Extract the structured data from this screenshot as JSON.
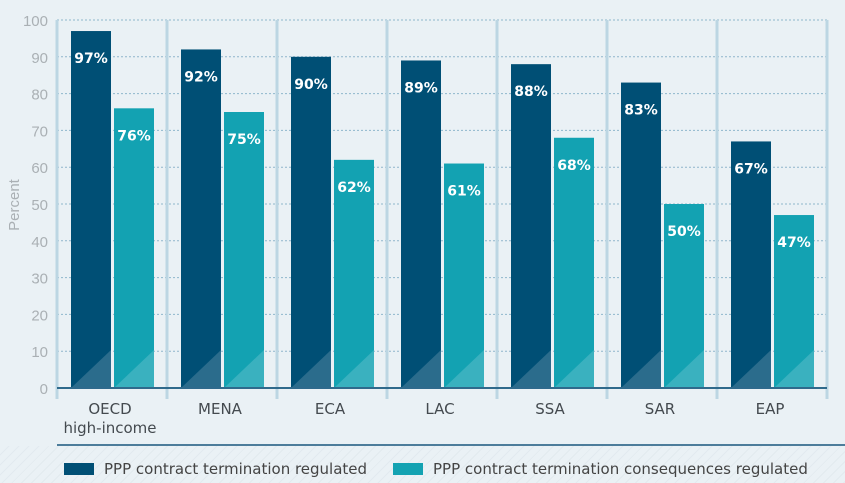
{
  "chart_data": {
    "type": "bar",
    "title": "",
    "xlabel": "",
    "ylabel": "Percent",
    "ylim": [
      0,
      100
    ],
    "yticks": [
      0,
      10,
      20,
      30,
      40,
      50,
      60,
      70,
      80,
      90,
      100
    ],
    "grid": true,
    "legend_position": "bottom",
    "categories": [
      "OECD high-income",
      "MENA",
      "ECA",
      "LAC",
      "SSA",
      "SAR",
      "EAP"
    ],
    "category_lines": [
      [
        "OECD",
        "high-income"
      ],
      [
        "MENA"
      ],
      [
        "ECA"
      ],
      [
        "LAC"
      ],
      [
        "SSA"
      ],
      [
        "SAR"
      ],
      [
        "EAP"
      ]
    ],
    "series": [
      {
        "name": "PPP contract termination regulated",
        "color": "#004f75",
        "values": [
          97,
          92,
          90,
          89,
          88,
          83,
          67
        ],
        "labels": [
          "97%",
          "92%",
          "90%",
          "89%",
          "88%",
          "83%",
          "67%"
        ]
      },
      {
        "name": "PPP contract termination consequences regulated",
        "color": "#13a2b2",
        "values": [
          76,
          75,
          62,
          61,
          68,
          50,
          47
        ],
        "labels": [
          "76%",
          "75%",
          "62%",
          "61%",
          "68%",
          "50%",
          "47%"
        ]
      }
    ]
  }
}
